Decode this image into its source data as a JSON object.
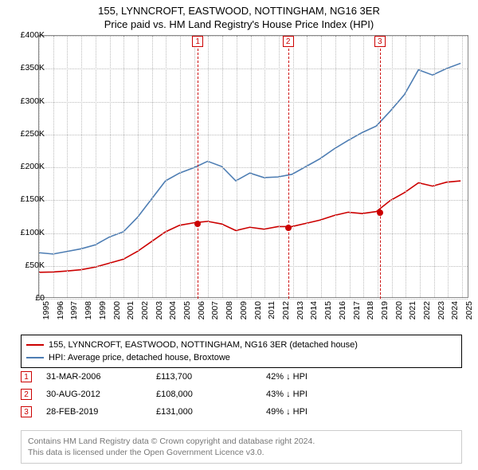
{
  "title": {
    "line1": "155, LYNNCROFT, EASTWOOD, NOTTINGHAM, NG16 3ER",
    "line2": "Price paid vs. HM Land Registry's House Price Index (HPI)",
    "color": "#000000",
    "fontsize": 13
  },
  "chart": {
    "type": "line",
    "background_color": "#ffffff",
    "grid_color": "#bbbbbb",
    "border_color": "#888888",
    "xlim": [
      1995,
      2025.5
    ],
    "ylim": [
      0,
      400000
    ],
    "ytick_step": 50000,
    "ytick_labels": [
      "£0",
      "£50K",
      "£100K",
      "£150K",
      "£200K",
      "£250K",
      "£300K",
      "£350K",
      "£400K"
    ],
    "xticks": [
      1995,
      1996,
      1997,
      1998,
      1999,
      2000,
      2001,
      2002,
      2003,
      2004,
      2005,
      2006,
      2007,
      2008,
      2009,
      2010,
      2011,
      2012,
      2013,
      2014,
      2015,
      2016,
      2017,
      2018,
      2019,
      2020,
      2021,
      2022,
      2023,
      2024,
      2025
    ],
    "tick_fontsize": 10.5,
    "series": [
      {
        "name": "price_paid",
        "color": "#cc0000",
        "width": 1.6,
        "points": [
          [
            1995,
            38000
          ],
          [
            1996,
            38500
          ],
          [
            1997,
            40000
          ],
          [
            1998,
            42000
          ],
          [
            1999,
            46000
          ],
          [
            2000,
            52000
          ],
          [
            2001,
            58000
          ],
          [
            2002,
            70000
          ],
          [
            2003,
            85000
          ],
          [
            2004,
            100000
          ],
          [
            2005,
            110000
          ],
          [
            2006,
            113700
          ],
          [
            2007,
            116000
          ],
          [
            2008,
            112000
          ],
          [
            2009,
            102000
          ],
          [
            2010,
            107000
          ],
          [
            2011,
            104000
          ],
          [
            2012,
            108000
          ],
          [
            2013,
            108000
          ],
          [
            2014,
            113000
          ],
          [
            2015,
            118000
          ],
          [
            2016,
            125000
          ],
          [
            2017,
            130000
          ],
          [
            2018,
            128000
          ],
          [
            2019,
            131000
          ],
          [
            2020,
            148000
          ],
          [
            2021,
            160000
          ],
          [
            2022,
            175000
          ],
          [
            2023,
            170000
          ],
          [
            2024,
            176000
          ],
          [
            2025,
            178000
          ]
        ]
      },
      {
        "name": "hpi",
        "color": "#4d7db3",
        "width": 1.6,
        "points": [
          [
            1995,
            68000
          ],
          [
            1996,
            66000
          ],
          [
            1997,
            70000
          ],
          [
            1998,
            74000
          ],
          [
            1999,
            80000
          ],
          [
            2000,
            92000
          ],
          [
            2001,
            100000
          ],
          [
            2002,
            122000
          ],
          [
            2003,
            150000
          ],
          [
            2004,
            178000
          ],
          [
            2005,
            190000
          ],
          [
            2006,
            198000
          ],
          [
            2007,
            208000
          ],
          [
            2008,
            200000
          ],
          [
            2009,
            178000
          ],
          [
            2010,
            190000
          ],
          [
            2011,
            183000
          ],
          [
            2012,
            184000
          ],
          [
            2013,
            188000
          ],
          [
            2014,
            200000
          ],
          [
            2015,
            212000
          ],
          [
            2016,
            227000
          ],
          [
            2017,
            240000
          ],
          [
            2018,
            252000
          ],
          [
            2019,
            262000
          ],
          [
            2020,
            285000
          ],
          [
            2021,
            310000
          ],
          [
            2022,
            348000
          ],
          [
            2023,
            340000
          ],
          [
            2024,
            350000
          ],
          [
            2025,
            358000
          ]
        ]
      }
    ],
    "markers": [
      {
        "label": "1",
        "x": 2006.25,
        "price": 113700,
        "color": "#cc0000"
      },
      {
        "label": "2",
        "x": 2012.66,
        "price": 108000,
        "color": "#cc0000"
      },
      {
        "label": "3",
        "x": 2019.16,
        "price": 131000,
        "color": "#cc0000"
      }
    ]
  },
  "legend": {
    "border_color": "#000000",
    "fontsize": 11,
    "items": [
      {
        "color": "#cc0000",
        "label": "155, LYNNCROFT, EASTWOOD, NOTTINGHAM, NG16 3ER (detached house)"
      },
      {
        "color": "#4d7db3",
        "label": "HPI: Average price, detached house, Broxtowe"
      }
    ]
  },
  "events": {
    "fontsize": 11,
    "rows": [
      {
        "label": "1",
        "color": "#cc0000",
        "date": "31-MAR-2006",
        "price": "£113,700",
        "pct": "42% ↓ HPI"
      },
      {
        "label": "2",
        "color": "#cc0000",
        "date": "30-AUG-2012",
        "price": "£108,000",
        "pct": "43% ↓ HPI"
      },
      {
        "label": "3",
        "color": "#cc0000",
        "date": "28-FEB-2019",
        "price": "£131,000",
        "pct": "49% ↓ HPI"
      }
    ]
  },
  "footnote": {
    "line1": "Contains HM Land Registry data © Crown copyright and database right 2024.",
    "line2": "This data is licensed under the Open Government Licence v3.0.",
    "color": "#777777",
    "border_color": "#cccccc",
    "fontsize": 10.5
  }
}
